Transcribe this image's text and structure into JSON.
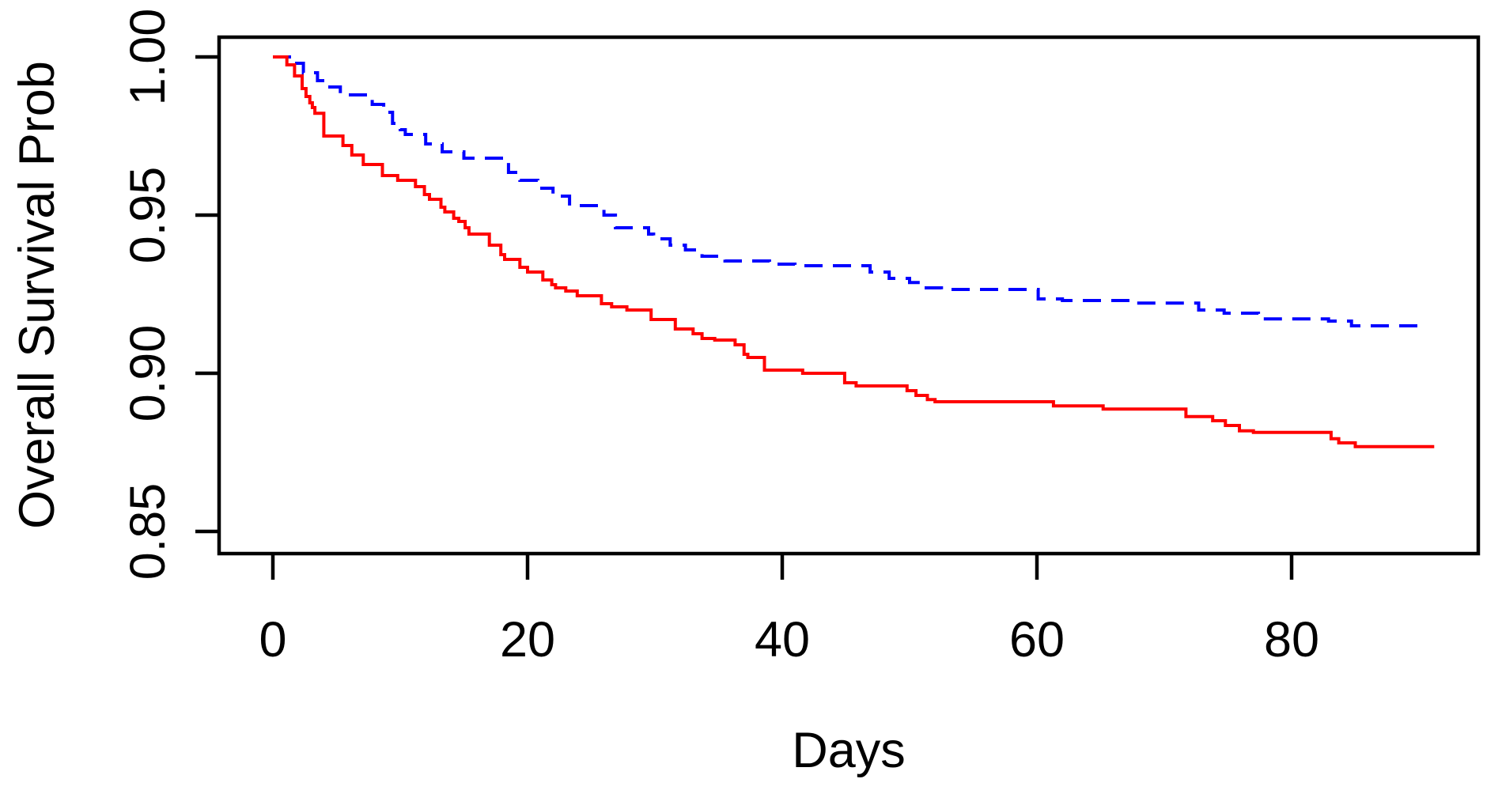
{
  "chart_data": {
    "type": "line",
    "variant": "kaplan-meier-step-curves",
    "title": "",
    "xlabel": "Days",
    "ylabel": "Overall Survival Prob",
    "grid": false,
    "legend_position": "none",
    "frame_color": "#000000",
    "background_color": "#FFFFFF",
    "x_axis": {
      "tick_values": [
        0,
        20,
        40,
        60,
        80
      ],
      "tick_labels": [
        "0",
        "20",
        "40",
        "60",
        "80"
      ],
      "range": [
        -4.2,
        94.7
      ]
    },
    "y_axis": {
      "tick_values": [
        1.0,
        0.95,
        0.9,
        0.85
      ],
      "tick_labels": [
        "1.00",
        "0.95",
        "0.90",
        "0.85"
      ],
      "range": [
        0.843,
        1.006
      ]
    },
    "series": [
      {
        "name": "blue-dashed-curve",
        "color": "#0000FF",
        "line_style": "dashed",
        "points": [
          [
            0,
            1.0
          ],
          [
            1.55,
            0.998
          ],
          [
            2.4,
            0.995
          ],
          [
            3.5,
            0.9925
          ],
          [
            4.3,
            0.9905
          ],
          [
            5.3,
            0.988
          ],
          [
            7.8,
            0.985
          ],
          [
            8.7,
            0.9825
          ],
          [
            9.4,
            0.979
          ],
          [
            10.0,
            0.977
          ],
          [
            10.4,
            0.9755
          ],
          [
            12.0,
            0.9725
          ],
          [
            13.3,
            0.97
          ],
          [
            15.0,
            0.968
          ],
          [
            18.5,
            0.9635
          ],
          [
            19.4,
            0.961
          ],
          [
            20.8,
            0.9585
          ],
          [
            22.0,
            0.956
          ],
          [
            23.3,
            0.953
          ],
          [
            26.0,
            0.95
          ],
          [
            26.9,
            0.946
          ],
          [
            29.5,
            0.944
          ],
          [
            29.9,
            0.9425
          ],
          [
            31.2,
            0.9405
          ],
          [
            32.4,
            0.939
          ],
          [
            33.7,
            0.937
          ],
          [
            35.5,
            0.9355
          ],
          [
            39.0,
            0.9345
          ],
          [
            41.0,
            0.934
          ],
          [
            46.9,
            0.932
          ],
          [
            48.4,
            0.93
          ],
          [
            50.0,
            0.9287
          ],
          [
            51.1,
            0.927
          ],
          [
            52.5,
            0.9265
          ],
          [
            60.1,
            0.9235
          ],
          [
            62.0,
            0.923
          ],
          [
            68.0,
            0.9222
          ],
          [
            72.7,
            0.92
          ],
          [
            74.7,
            0.919
          ],
          [
            77.4,
            0.9172
          ],
          [
            82.9,
            0.9165
          ],
          [
            84.7,
            0.915
          ],
          [
            90.6,
            0.915
          ]
        ]
      },
      {
        "name": "red-solid-curve",
        "color": "#FF0000",
        "line_style": "solid",
        "points": [
          [
            0,
            1.0
          ],
          [
            1.1,
            0.9975
          ],
          [
            1.7,
            0.994
          ],
          [
            2.3,
            0.99
          ],
          [
            2.6,
            0.9875
          ],
          [
            2.9,
            0.9855
          ],
          [
            3.1,
            0.984
          ],
          [
            3.3,
            0.9822
          ],
          [
            4.0,
            0.975
          ],
          [
            5.5,
            0.972
          ],
          [
            6.2,
            0.969
          ],
          [
            7.1,
            0.966
          ],
          [
            8.6,
            0.9625
          ],
          [
            9.8,
            0.961
          ],
          [
            11.2,
            0.959
          ],
          [
            11.9,
            0.9565
          ],
          [
            12.3,
            0.955
          ],
          [
            13.2,
            0.9525
          ],
          [
            13.5,
            0.951
          ],
          [
            14.2,
            0.949
          ],
          [
            14.6,
            0.948
          ],
          [
            15.1,
            0.946
          ],
          [
            15.4,
            0.944
          ],
          [
            17.0,
            0.9405
          ],
          [
            17.9,
            0.9375
          ],
          [
            18.2,
            0.936
          ],
          [
            19.4,
            0.9335
          ],
          [
            20.0,
            0.932
          ],
          [
            21.2,
            0.9295
          ],
          [
            21.9,
            0.928
          ],
          [
            22.2,
            0.927
          ],
          [
            23.0,
            0.926
          ],
          [
            23.9,
            0.9245
          ],
          [
            25.8,
            0.922
          ],
          [
            26.6,
            0.921
          ],
          [
            27.8,
            0.92
          ],
          [
            29.7,
            0.917
          ],
          [
            31.6,
            0.914
          ],
          [
            33.0,
            0.9125
          ],
          [
            33.7,
            0.911
          ],
          [
            34.7,
            0.9105
          ],
          [
            36.3,
            0.909
          ],
          [
            37.0,
            0.906
          ],
          [
            37.3,
            0.905
          ],
          [
            38.6,
            0.901
          ],
          [
            41.6,
            0.9
          ],
          [
            44.9,
            0.897
          ],
          [
            45.8,
            0.896
          ],
          [
            49.8,
            0.8945
          ],
          [
            50.5,
            0.893
          ],
          [
            51.4,
            0.8917
          ],
          [
            52.0,
            0.891
          ],
          [
            61.3,
            0.8897
          ],
          [
            65.2,
            0.8887
          ],
          [
            71.7,
            0.8863
          ],
          [
            73.8,
            0.885
          ],
          [
            74.8,
            0.8835
          ],
          [
            75.9,
            0.8818
          ],
          [
            77.0,
            0.8813
          ],
          [
            83.1,
            0.8793
          ],
          [
            83.7,
            0.878
          ],
          [
            85.0,
            0.8768
          ],
          [
            91.2,
            0.8768
          ]
        ]
      }
    ]
  }
}
